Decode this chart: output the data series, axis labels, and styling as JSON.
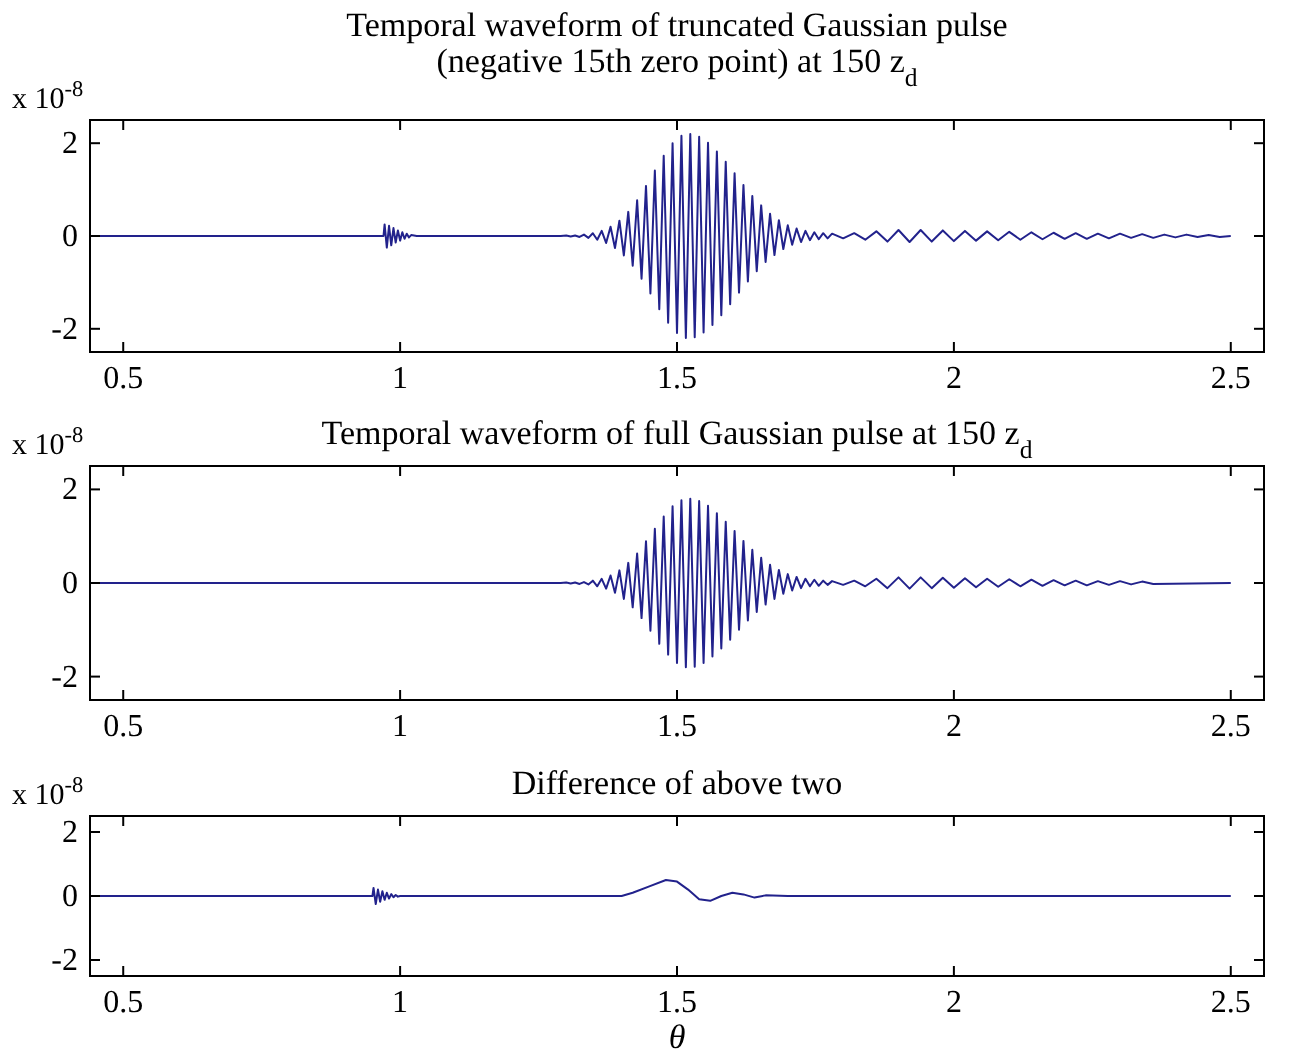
{
  "chart_data": [
    {
      "type": "line",
      "title": "Temporal waveform of truncated Gaussian pulse\n(negative 15th zero point) at 150 z$_{d}$",
      "annotations": [
        "x 10$^{-8}$"
      ],
      "xlim": [
        0.44,
        2.56
      ],
      "ylim": [
        -2.5,
        2.5
      ],
      "xticks": [
        0.5,
        1,
        1.5,
        2,
        2.5
      ],
      "yticks": [
        -2,
        0,
        2
      ],
      "grid": false,
      "series": [
        {
          "color": "#22228c",
          "x": [
            0.45,
            0.97,
            0.972,
            0.976,
            0.98,
            0.984,
            0.988,
            0.992,
            0.996,
            1.0,
            1.004,
            1.008,
            1.012,
            1.016,
            1.02,
            1.03,
            1.29,
            1.3,
            1.308,
            1.316,
            1.324,
            1.332,
            1.34,
            1.348,
            1.356,
            1.364,
            1.372,
            1.38,
            1.388,
            1.396,
            1.404,
            1.412,
            1.42,
            1.428,
            1.436,
            1.444,
            1.452,
            1.46,
            1.468,
            1.476,
            1.484,
            1.492,
            1.5,
            1.508,
            1.516,
            1.524,
            1.532,
            1.54,
            1.548,
            1.556,
            1.564,
            1.572,
            1.58,
            1.588,
            1.596,
            1.604,
            1.612,
            1.62,
            1.628,
            1.636,
            1.644,
            1.652,
            1.66,
            1.668,
            1.676,
            1.684,
            1.692,
            1.7,
            1.708,
            1.716,
            1.724,
            1.732,
            1.74,
            1.748,
            1.756,
            1.764,
            1.772,
            1.78,
            1.8,
            1.82,
            1.84,
            1.86,
            1.88,
            1.9,
            1.92,
            1.94,
            1.96,
            1.98,
            2.0,
            2.02,
            2.04,
            2.06,
            2.08,
            2.1,
            2.12,
            2.14,
            2.16,
            2.18,
            2.2,
            2.22,
            2.24,
            2.26,
            2.28,
            2.3,
            2.32,
            2.34,
            2.36,
            2.38,
            2.4,
            2.42,
            2.44,
            2.46,
            2.48,
            2.5
          ],
          "values": [
            0,
            0,
            0.25,
            -0.25,
            0.22,
            -0.2,
            0.17,
            -0.14,
            0.12,
            -0.1,
            0.08,
            -0.06,
            0.05,
            -0.03,
            0.02,
            0,
            0,
            0.01,
            -0.01,
            0.01,
            -0.02,
            0.03,
            -0.04,
            0.06,
            -0.08,
            0.11,
            -0.15,
            0.2,
            -0.26,
            0.33,
            -0.42,
            0.52,
            -0.64,
            0.77,
            -0.92,
            1.08,
            -1.24,
            1.41,
            -1.58,
            1.73,
            -1.87,
            2.0,
            -2.09,
            2.16,
            -2.2,
            2.2,
            -2.18,
            2.14,
            -2.08,
            2.01,
            -1.92,
            1.82,
            -1.71,
            1.6,
            -1.47,
            1.35,
            -1.22,
            1.1,
            -0.98,
            0.86,
            -0.76,
            0.66,
            -0.56,
            0.48,
            -0.41,
            0.34,
            -0.28,
            0.23,
            -0.19,
            0.16,
            -0.13,
            0.11,
            -0.09,
            0.08,
            -0.07,
            0.06,
            -0.05,
            0.05,
            -0.05,
            0.06,
            -0.08,
            0.1,
            -0.12,
            0.13,
            -0.13,
            0.13,
            -0.12,
            0.12,
            -0.11,
            0.11,
            -0.1,
            0.1,
            -0.09,
            0.09,
            -0.08,
            0.08,
            -0.07,
            0.07,
            -0.06,
            0.06,
            -0.06,
            0.05,
            -0.05,
            0.05,
            -0.04,
            0.04,
            -0.04,
            0.03,
            -0.03,
            0.03,
            -0.02,
            0.02,
            -0.02,
            0
          ]
        }
      ]
    },
    {
      "type": "line",
      "title": "Temporal waveform of full Gaussian pulse at 150 z$_{d}$",
      "annotations": [
        "x 10$^{-8}$"
      ],
      "xlim": [
        0.44,
        2.56
      ],
      "ylim": [
        -2.5,
        2.5
      ],
      "xticks": [
        0.5,
        1,
        1.5,
        2,
        2.5
      ],
      "yticks": [
        -2,
        0,
        2
      ],
      "grid": false,
      "series": [
        {
          "color": "#22228c",
          "x": [
            0.45,
            1.29,
            1.3,
            1.308,
            1.316,
            1.324,
            1.332,
            1.34,
            1.348,
            1.356,
            1.364,
            1.372,
            1.38,
            1.388,
            1.396,
            1.404,
            1.412,
            1.42,
            1.428,
            1.436,
            1.444,
            1.452,
            1.46,
            1.468,
            1.476,
            1.484,
            1.492,
            1.5,
            1.508,
            1.516,
            1.524,
            1.532,
            1.54,
            1.548,
            1.556,
            1.564,
            1.572,
            1.58,
            1.588,
            1.596,
            1.604,
            1.612,
            1.62,
            1.628,
            1.636,
            1.644,
            1.652,
            1.66,
            1.668,
            1.676,
            1.684,
            1.692,
            1.7,
            1.708,
            1.716,
            1.724,
            1.732,
            1.74,
            1.748,
            1.756,
            1.764,
            1.772,
            1.78,
            1.8,
            1.82,
            1.84,
            1.86,
            1.88,
            1.9,
            1.92,
            1.94,
            1.96,
            1.98,
            2.0,
            2.02,
            2.04,
            2.06,
            2.08,
            2.1,
            2.12,
            2.14,
            2.16,
            2.18,
            2.2,
            2.22,
            2.24,
            2.26,
            2.28,
            2.3,
            2.32,
            2.34,
            2.36,
            2.5
          ],
          "values": [
            0,
            0,
            0.01,
            -0.01,
            0.01,
            -0.02,
            0.02,
            -0.03,
            0.05,
            -0.07,
            0.09,
            -0.12,
            0.16,
            -0.21,
            0.27,
            -0.34,
            0.43,
            -0.52,
            0.63,
            -0.75,
            0.89,
            -1.02,
            1.16,
            -1.3,
            1.42,
            -1.53,
            1.64,
            -1.71,
            1.77,
            -1.8,
            1.8,
            -1.79,
            1.75,
            -1.71,
            1.65,
            -1.57,
            1.49,
            -1.4,
            1.31,
            -1.21,
            1.11,
            -1.0,
            0.9,
            -0.8,
            0.71,
            -0.62,
            0.54,
            -0.46,
            0.39,
            -0.34,
            0.28,
            -0.23,
            0.19,
            -0.16,
            0.13,
            -0.11,
            0.09,
            -0.07,
            0.07,
            -0.06,
            0.05,
            -0.04,
            0.04,
            -0.04,
            0.05,
            -0.07,
            0.09,
            -0.11,
            0.12,
            -0.12,
            0.12,
            -0.11,
            0.11,
            -0.1,
            0.1,
            -0.09,
            0.09,
            -0.08,
            0.08,
            -0.07,
            0.07,
            -0.06,
            0.06,
            -0.05,
            0.05,
            -0.05,
            0.04,
            -0.04,
            0.04,
            -0.03,
            0.03,
            -0.02,
            0
          ]
        }
      ]
    },
    {
      "type": "line",
      "title": "Difference of above two",
      "annotations": [
        "x 10$^{-8}$"
      ],
      "xlabel": "θ",
      "xlim": [
        0.44,
        2.56
      ],
      "ylim": [
        -2.5,
        2.5
      ],
      "xticks": [
        0.5,
        1,
        1.5,
        2,
        2.5
      ],
      "yticks": [
        -2,
        0,
        2
      ],
      "grid": false,
      "series": [
        {
          "color": "#22228c",
          "x": [
            0.45,
            0.95,
            0.952,
            0.956,
            0.96,
            0.964,
            0.968,
            0.972,
            0.976,
            0.98,
            0.984,
            0.988,
            0.992,
            0.996,
            1.0,
            1.4,
            1.42,
            1.45,
            1.48,
            1.5,
            1.52,
            1.54,
            1.56,
            1.58,
            1.6,
            1.62,
            1.64,
            1.66,
            1.7,
            2.5
          ],
          "values": [
            0,
            0,
            0.25,
            -0.25,
            0.2,
            -0.18,
            0.15,
            -0.12,
            0.1,
            -0.08,
            0.06,
            -0.04,
            0.03,
            -0.02,
            0,
            0,
            0.1,
            0.3,
            0.5,
            0.45,
            0.2,
            -0.1,
            -0.15,
            0,
            0.1,
            0.05,
            -0.05,
            0.02,
            0,
            0
          ]
        }
      ]
    }
  ]
}
